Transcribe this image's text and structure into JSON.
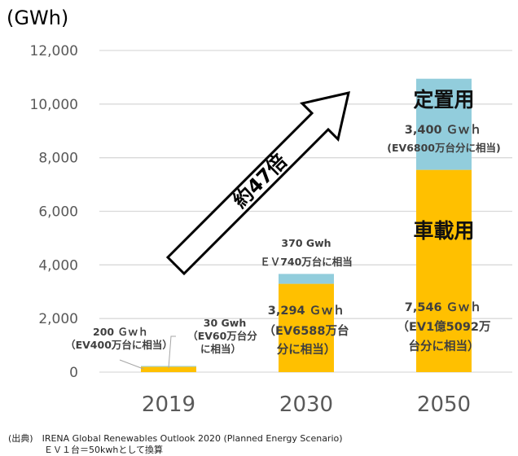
{
  "chart_data": {
    "type": "bar",
    "stacked": true,
    "unit_label": "(GWh)",
    "categories": [
      "2019",
      "2030",
      "2050"
    ],
    "series": [
      {
        "name": "車載用",
        "color": "#FFC000",
        "values": [
          200,
          3294,
          7546
        ]
      },
      {
        "name": "定置用",
        "color": "#92CDDC",
        "values": [
          30,
          370,
          3400
        ]
      }
    ],
    "ylim": [
      0,
      12000
    ],
    "yticks": [
      0,
      2000,
      4000,
      6000,
      8000,
      10000,
      12000
    ],
    "ytick_labels": [
      "0",
      "2,000",
      "4,000",
      "6,000",
      "8,000",
      "10,000",
      "12,000"
    ],
    "grid": true,
    "gridline_color": "#D9D9D9",
    "annotations": {
      "y2019_vehicle": [
        "200 Ｇｗｈ",
        "（EV400万台に相当）"
      ],
      "y2019_stationary": [
        "30 Gwh",
        "（EV60万台分",
        "に相当）"
      ],
      "y2030_stationary": [
        "370 Gwh",
        "ＥＶ740万台に相当"
      ],
      "y2030_vehicle": [
        "3,294 Ｇｗｈ",
        "（EV6588万台",
        "分に相当）"
      ],
      "y2050_stationary_category": "定置用",
      "y2050_stationary": [
        "3,400 Ｇｗｈ",
        "(EV6800万台分に相当)"
      ],
      "y2050_vehicle_category": "車載用",
      "y2050_vehicle": [
        "7,546 Ｇｗｈ",
        "（EV1億5092万",
        "台分に相当）"
      ],
      "growth_arrow": "約47倍"
    }
  },
  "footnote": {
    "source": "(出典)　IRENA Global Renewables Outlook 2020 (Planned Energy Scenario)",
    "conversion": "ＥＶ１台＝50kwhとして換算"
  }
}
